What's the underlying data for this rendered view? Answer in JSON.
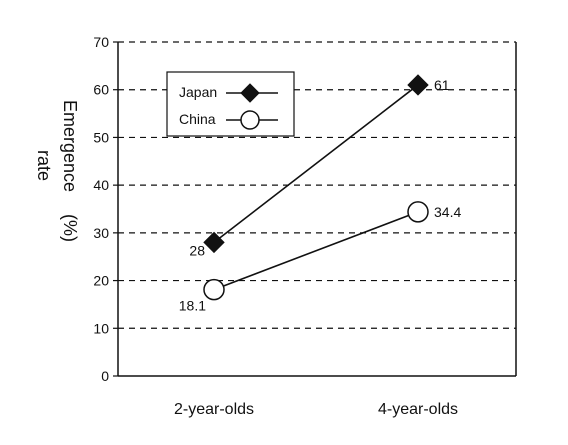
{
  "chart_data": {
    "type": "line",
    "categories": [
      "2-year-olds",
      "4-year-olds"
    ],
    "series": [
      {
        "name": "Japan",
        "values": [
          28,
          61
        ],
        "marker": "filled-diamond",
        "labels": [
          "28",
          "61"
        ]
      },
      {
        "name": "China",
        "values": [
          18.1,
          34.4
        ],
        "marker": "open-circle",
        "labels": [
          "18.1",
          "34.4"
        ]
      }
    ],
    "ylabel_line1": "Emergence",
    "ylabel_line2": "rate",
    "ylabel_unit": "(%)",
    "ylim": [
      0,
      70
    ],
    "yticks": [
      "0",
      "10",
      "20",
      "30",
      "40",
      "50",
      "60",
      "70"
    ],
    "grid": "horizontal-dashed",
    "legend_position": "top-left",
    "colors": {
      "line": "#111111",
      "japan_marker": "#111111",
      "china_marker": "#ffffff"
    }
  }
}
